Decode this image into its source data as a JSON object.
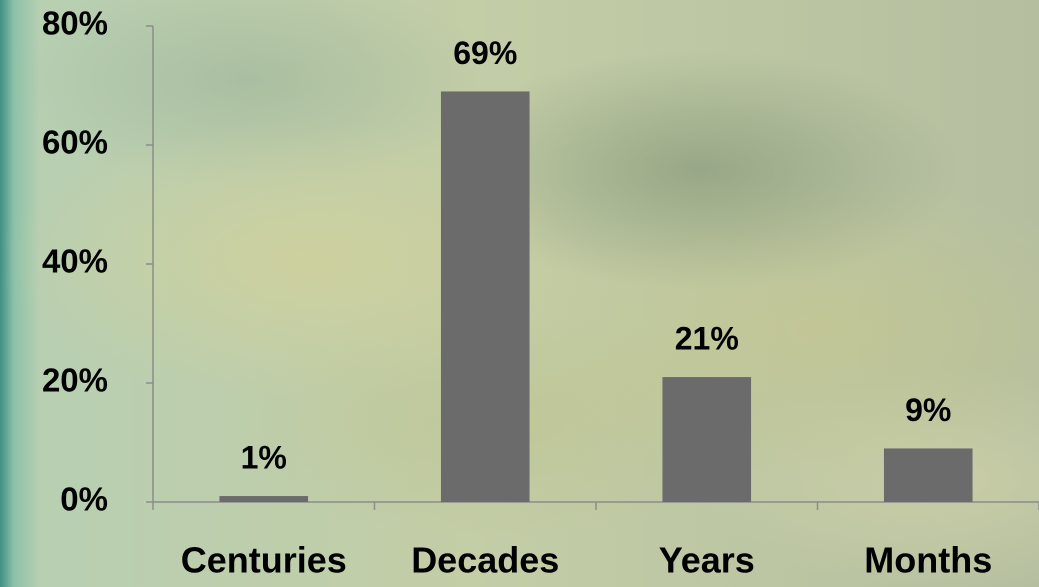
{
  "chart_data": {
    "type": "bar",
    "categories": [
      "Centuries",
      "Decades",
      "Years",
      "Months"
    ],
    "values": [
      1,
      69,
      21,
      9
    ],
    "value_labels": [
      "1%",
      "69%",
      "21%",
      "9%"
    ],
    "color": "#6b6b6b",
    "ylim": [
      0,
      80
    ],
    "yticks": [
      {
        "value": 0,
        "label": "0%"
      },
      {
        "value": 20,
        "label": "20%"
      },
      {
        "value": 40,
        "label": "40%"
      },
      {
        "value": 60,
        "label": "60%"
      },
      {
        "value": 80,
        "label": "80%"
      }
    ],
    "grid": false
  }
}
